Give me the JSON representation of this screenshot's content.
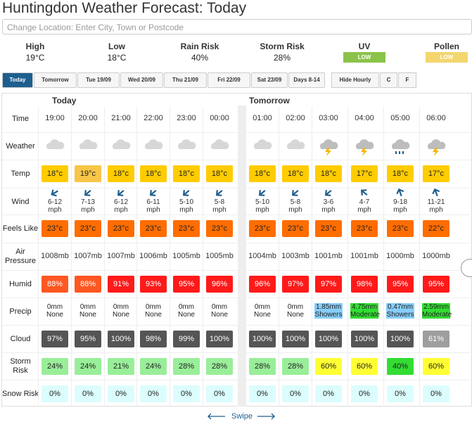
{
  "header": {
    "title": "Huntingdon Weather Forecast: Today",
    "search_placeholder": "Change Location: Enter City, Town or Postcode"
  },
  "summary": [
    {
      "label": "High",
      "value": "19°C"
    },
    {
      "label": "Low",
      "value": "18°C"
    },
    {
      "label": "Rain Risk",
      "value": "40%"
    },
    {
      "label": "Storm Risk",
      "value": "28%"
    },
    {
      "label": "UV",
      "value": "LOW"
    },
    {
      "label": "Pollen",
      "value": "LOW"
    }
  ],
  "tabs": [
    "Today",
    "Tomorrow",
    "Tue 19/09",
    "Wed 20/09",
    "Thu 21/09",
    "Fri 22/09",
    "Sat 23/09",
    "Days 8-14"
  ],
  "options": [
    "Hide Hourly",
    "C",
    "F"
  ],
  "table": {
    "row_labels": [
      "Time",
      "Weather",
      "Temp",
      "Wind",
      "Feels Like",
      "Air Pressure",
      "Humid",
      "Precip",
      "Cloud",
      "Storm Risk",
      "Snow Risk"
    ],
    "days": [
      {
        "label": "Today",
        "hours": [
          {
            "time": "19:00",
            "temp": "18°c",
            "wind": "6-12 mph",
            "feels": "23°c",
            "pressure": "1008mb",
            "humid": "88%",
            "precip_amount": "0mm",
            "precip_type": "None",
            "cloud": "97%",
            "storm": "24%",
            "snow": "0%"
          },
          {
            "time": "20:00",
            "temp": "19°c",
            "wind": "7-13 mph",
            "feels": "23°c",
            "pressure": "1007mb",
            "humid": "88%",
            "precip_amount": "0mm",
            "precip_type": "None",
            "cloud": "95%",
            "storm": "24%",
            "snow": "0%"
          },
          {
            "time": "21:00",
            "temp": "18°c",
            "wind": "6-12 mph",
            "feels": "23°c",
            "pressure": "1007mb",
            "humid": "91%",
            "precip_amount": "0mm",
            "precip_type": "None",
            "cloud": "100%",
            "storm": "21%",
            "snow": "0%"
          },
          {
            "time": "22:00",
            "temp": "18°c",
            "wind": "6-11 mph",
            "feels": "23°c",
            "pressure": "1006mb",
            "humid": "93%",
            "precip_amount": "0mm",
            "precip_type": "None",
            "cloud": "98%",
            "storm": "24%",
            "snow": "0%"
          },
          {
            "time": "23:00",
            "temp": "18°c",
            "wind": "5-10 mph",
            "feels": "23°c",
            "pressure": "1005mb",
            "humid": "95%",
            "precip_amount": "0mm",
            "precip_type": "None",
            "cloud": "99%",
            "storm": "28%",
            "snow": "0%"
          },
          {
            "time": "00:00",
            "temp": "18°c",
            "wind": "5-8 mph",
            "feels": "23°c",
            "pressure": "1005mb",
            "humid": "96%",
            "precip_amount": "0mm",
            "precip_type": "None",
            "cloud": "100%",
            "storm": "28%",
            "snow": "0%"
          }
        ]
      },
      {
        "label": "Tomorrow",
        "hours": [
          {
            "time": "01:00",
            "temp": "18°c",
            "wind": "5-10 mph",
            "feels": "23°c",
            "pressure": "1004mb",
            "humid": "96%",
            "precip_amount": "0mm",
            "precip_type": "None",
            "cloud": "100%",
            "storm": "28%",
            "snow": "0%"
          },
          {
            "time": "02:00",
            "temp": "18°c",
            "wind": "5-8 mph",
            "feels": "23°c",
            "pressure": "1003mb",
            "humid": "97%",
            "precip_amount": "0mm",
            "precip_type": "None",
            "cloud": "100%",
            "storm": "28%",
            "snow": "0%"
          },
          {
            "time": "03:00",
            "temp": "18°c",
            "wind": "3-6 mph",
            "feels": "23°c",
            "pressure": "1001mb",
            "humid": "97%",
            "precip_amount": "1.85mm",
            "precip_type": "Showers",
            "cloud": "100%",
            "storm": "60%",
            "snow": "0%"
          },
          {
            "time": "04:00",
            "temp": "17°c",
            "wind": "4-7 mph",
            "feels": "23°c",
            "pressure": "1001mb",
            "humid": "98%",
            "precip_amount": "4.75mm",
            "precip_type": "Moderate",
            "cloud": "100%",
            "storm": "60%",
            "snow": "0%"
          },
          {
            "time": "05:00",
            "temp": "18°c",
            "wind": "9-18 mph",
            "feels": "23°c",
            "pressure": "1000mb",
            "humid": "95%",
            "precip_amount": "0.47mm",
            "precip_type": "Showers",
            "cloud": "100%",
            "storm": "40%",
            "snow": "0%"
          },
          {
            "time": "06:00",
            "temp": "17°c",
            "wind": "11-21 mph",
            "feels": "22°c",
            "pressure": "1000mb",
            "humid": "95%",
            "precip_amount": "2.59mm",
            "precip_type": "Moderate",
            "cloud": "61%",
            "storm": "60%",
            "snow": "0%"
          }
        ]
      }
    ]
  },
  "footer": {
    "swipe": "Swipe"
  }
}
